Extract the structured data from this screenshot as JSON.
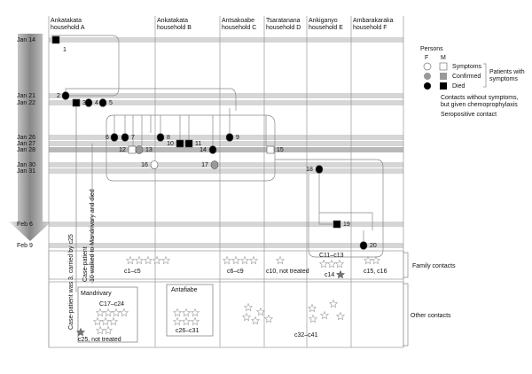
{
  "households": [
    {
      "place": "Ankatakata",
      "household": "household A"
    },
    {
      "place": "Ankatakata",
      "household": "household B"
    },
    {
      "place": "Antsakoabe",
      "household": "household C"
    },
    {
      "place": "Tsaratanana",
      "household": "household D"
    },
    {
      "place": "Ankigan​yo",
      "household": "household E"
    },
    {
      "place": "Ambarakaraka",
      "household": "household F"
    }
  ],
  "dates": [
    "Jan 14",
    "Jan 21",
    "Jan 22",
    "Jan 26",
    "Jan 27",
    "Jan 28",
    "Jan 30",
    "Jan 31",
    "Feb 6",
    "Feb 9"
  ],
  "patients": [
    "1",
    "2",
    "3",
    "4",
    "5",
    "6",
    "7",
    "8",
    "9",
    "10",
    "11",
    "12",
    "13",
    "14",
    "15",
    "16",
    "17",
    "18",
    "19",
    "20"
  ],
  "legend": {
    "title": "Persons",
    "female": "F",
    "male": "M",
    "symptoms": "Symptoms",
    "confirmed": "Confirmed",
    "died": "Died",
    "group": [
      "Patients with",
      "symptoms"
    ],
    "contacts": [
      "Contacts without symptoms,",
      "but given chemoprophylaxis"
    ],
    "seropositive": "Seropositive contact"
  },
  "rows": {
    "family": "Family contacts",
    "other": "Other contacts"
  },
  "notes": {
    "carried": "Case-patient was 3, carried by c25",
    "walked": [
      "Case-patient",
      "10 walked to Mandrivary and died"
    ]
  },
  "contacts": {
    "a": "c1–c5",
    "c": "c6–c9",
    "d": "c10, not treated",
    "e": "C11–c13",
    "e2": "c14",
    "f": "c15, c16",
    "mandrivary": "Mandrivary",
    "m": "C17–c24",
    "m2": "c25, not treated",
    "antafiabe": "Antafiabe",
    "an": "c26–c31",
    "o": "c32–c41"
  }
}
